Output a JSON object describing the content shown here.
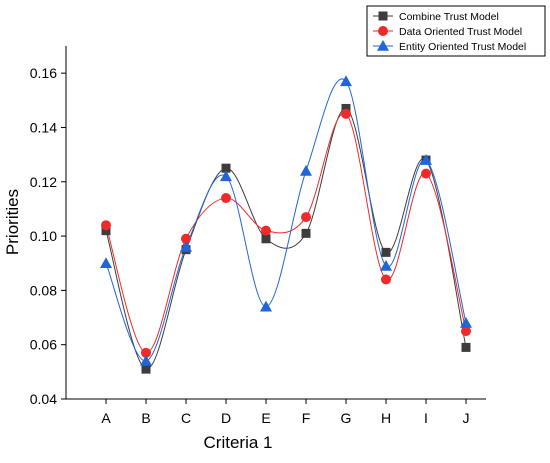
{
  "chart_data": {
    "type": "line",
    "xlabel": "Criteria 1",
    "ylabel": "Priorities",
    "categories": [
      "A",
      "B",
      "C",
      "D",
      "E",
      "F",
      "G",
      "H",
      "I",
      "J"
    ],
    "ylim": [
      0.04,
      0.17
    ],
    "yticks": [
      "0.04",
      "0.06",
      "0.08",
      "0.10",
      "0.12",
      "0.14",
      "0.16"
    ],
    "grid": false,
    "legend_position": "top-right",
    "series": [
      {
        "name": "Combine Trust Model",
        "marker": "square",
        "color": "#3d3d3d",
        "values": [
          0.102,
          0.051,
          0.095,
          0.125,
          0.099,
          0.101,
          0.147,
          0.094,
          0.128,
          0.059
        ]
      },
      {
        "name": "Data Oriented Trust Model",
        "marker": "circle",
        "color": "#ee2a2a",
        "values": [
          0.104,
          0.057,
          0.099,
          0.114,
          0.102,
          0.107,
          0.145,
          0.084,
          0.123,
          0.065
        ]
      },
      {
        "name": "Entity Oriented Trust Model",
        "marker": "triangle",
        "color": "#2166d9",
        "values": [
          0.09,
          0.054,
          0.096,
          0.122,
          0.074,
          0.124,
          0.157,
          0.089,
          0.128,
          0.068
        ]
      }
    ]
  }
}
